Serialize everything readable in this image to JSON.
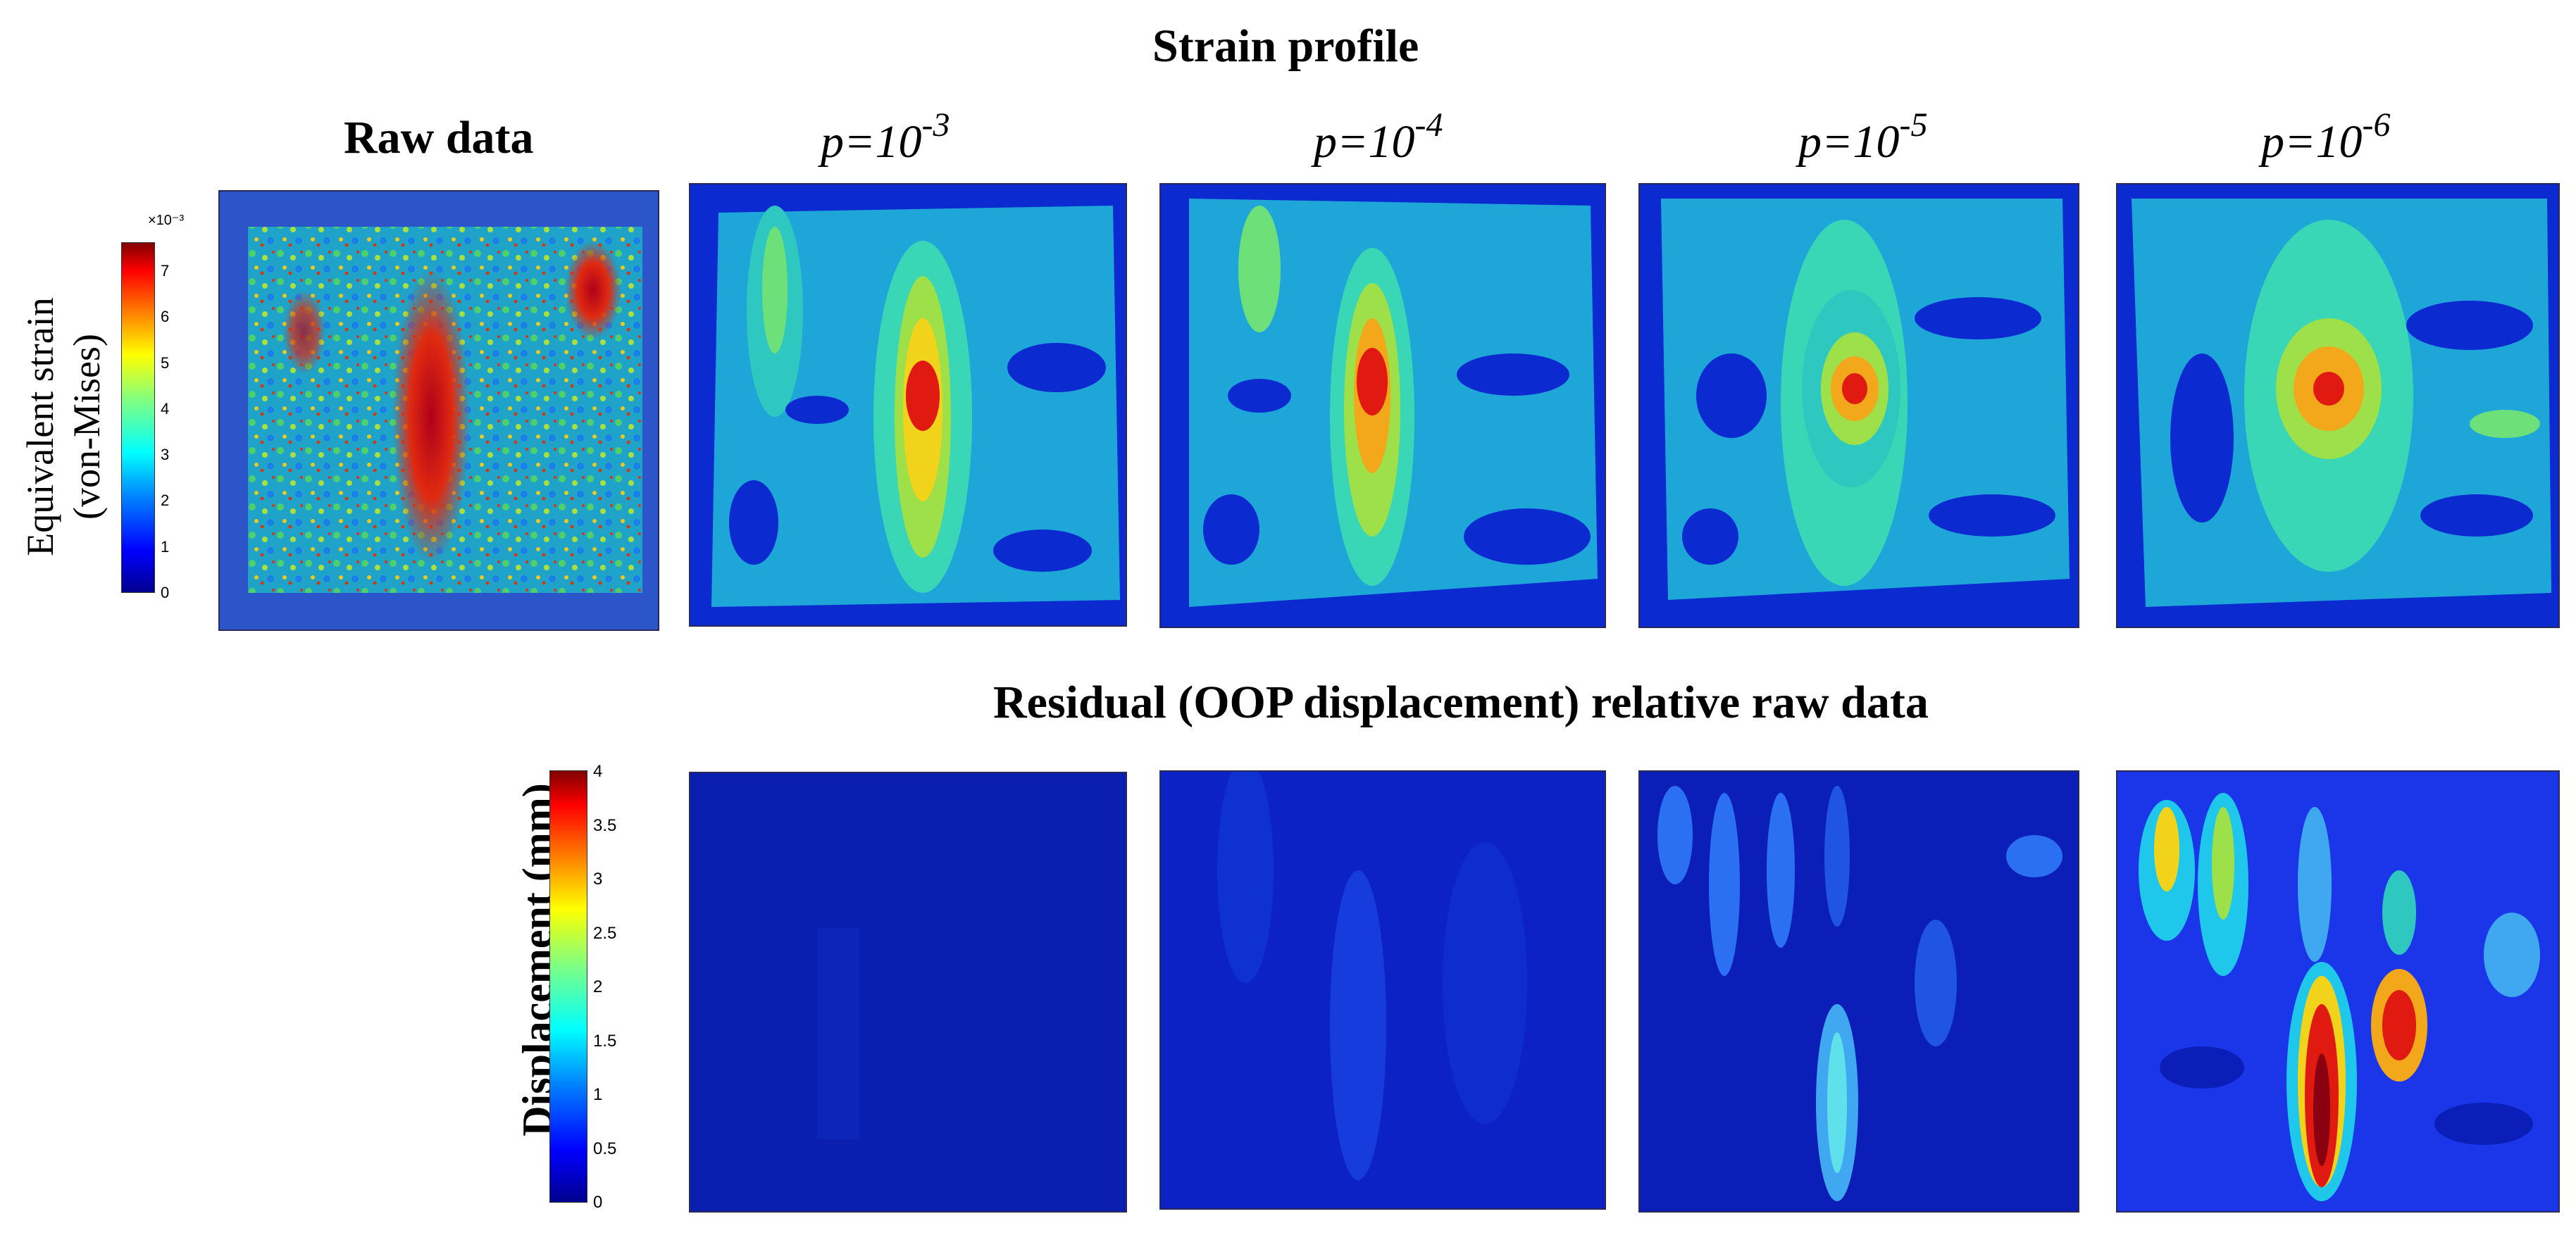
{
  "figure": {
    "strain_title": "Strain profile",
    "raw_title": "Raw data",
    "residual_title": "Residual (OOP displacement) relative raw data",
    "p_labels": [
      {
        "base": "p=10",
        "exp": "-3"
      },
      {
        "base": "p=10",
        "exp": "-4"
      },
      {
        "base": "p=10",
        "exp": "-5"
      },
      {
        "base": "p=10",
        "exp": "-6"
      }
    ]
  },
  "colorbar_strain": {
    "label_line1": "Equivalent strain",
    "label_line2": "(von-Mises)",
    "multiplier": "×10⁻³",
    "ticks": [
      "7",
      "6",
      "5",
      "4",
      "3",
      "2",
      "1",
      "0"
    ],
    "min": 0,
    "max": 7.6
  },
  "colorbar_displacement": {
    "label": "Displacement (mm)",
    "ticks": [
      "4",
      "3.5",
      "3",
      "2.5",
      "2",
      "1.5",
      "1",
      "0.5",
      "0"
    ],
    "min": 0,
    "max": 4
  },
  "colors": {
    "jet": [
      "#00008f",
      "#0000ff",
      "#0080ff",
      "#00ffff",
      "#80ff80",
      "#ffff00",
      "#ff8000",
      "#ff0000",
      "#800000"
    ],
    "panel_background": "#0a1f8f"
  }
}
